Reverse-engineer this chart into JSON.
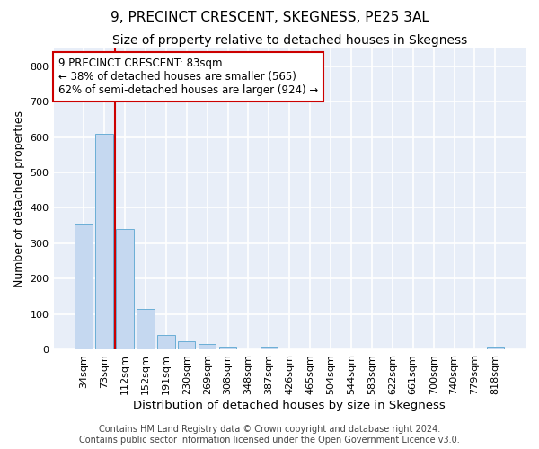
{
  "title": "9, PRECINCT CRESCENT, SKEGNESS, PE25 3AL",
  "subtitle": "Size of property relative to detached houses in Skegness",
  "xlabel": "Distribution of detached houses by size in Skegness",
  "ylabel": "Number of detached properties",
  "footer_line1": "Contains HM Land Registry data © Crown copyright and database right 2024.",
  "footer_line2": "Contains public sector information licensed under the Open Government Licence v3.0.",
  "bar_labels": [
    "34sqm",
    "73sqm",
    "112sqm",
    "152sqm",
    "191sqm",
    "230sqm",
    "269sqm",
    "308sqm",
    "348sqm",
    "387sqm",
    "426sqm",
    "465sqm",
    "504sqm",
    "544sqm",
    "583sqm",
    "622sqm",
    "661sqm",
    "700sqm",
    "740sqm",
    "779sqm",
    "818sqm"
  ],
  "bar_values": [
    355,
    610,
    340,
    115,
    40,
    22,
    15,
    8,
    0,
    8,
    0,
    0,
    0,
    0,
    0,
    0,
    0,
    0,
    0,
    0,
    8
  ],
  "bar_color": "#c5d8f0",
  "bar_edgecolor": "#6aaed6",
  "fig_background": "#ffffff",
  "plot_background": "#e8eef8",
  "grid_color": "#ffffff",
  "vline_x": 1.5,
  "vline_color": "#cc0000",
  "annotation_line1": "9 PRECINCT CRESCENT: 83sqm",
  "annotation_line2": "← 38% of detached houses are smaller (565)",
  "annotation_line3": "62% of semi-detached houses are larger (924) →",
  "ylim": [
    0,
    850
  ],
  "yticks": [
    0,
    100,
    200,
    300,
    400,
    500,
    600,
    700,
    800
  ],
  "title_fontsize": 11,
  "subtitle_fontsize": 10,
  "xlabel_fontsize": 9.5,
  "ylabel_fontsize": 9,
  "tick_fontsize": 8,
  "footer_fontsize": 7
}
